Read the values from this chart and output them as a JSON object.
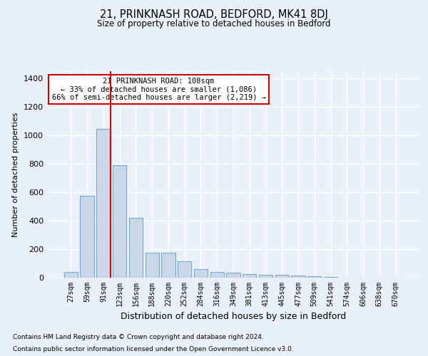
{
  "title": "21, PRINKNASH ROAD, BEDFORD, MK41 8DJ",
  "subtitle": "Size of property relative to detached houses in Bedford",
  "xlabel": "Distribution of detached houses by size in Bedford",
  "ylabel": "Number of detached properties",
  "footnote1": "Contains HM Land Registry data © Crown copyright and database right 2024.",
  "footnote2": "Contains public sector information licensed under the Open Government Licence v3.0.",
  "annotation_title": "21 PRINKNASH ROAD: 108sqm",
  "annotation_line1": "← 33% of detached houses are smaller (1,086)",
  "annotation_line2": "66% of semi-detached houses are larger (2,219) →",
  "bar_color": "#c8d8e8",
  "bar_edge_color": "#7aa8cc",
  "vline_color": "#cc0000",
  "categories": [
    "27sqm",
    "59sqm",
    "91sqm",
    "123sqm",
    "156sqm",
    "188sqm",
    "220sqm",
    "252sqm",
    "284sqm",
    "316sqm",
    "349sqm",
    "381sqm",
    "413sqm",
    "445sqm",
    "477sqm",
    "509sqm",
    "541sqm",
    "574sqm",
    "606sqm",
    "638sqm",
    "670sqm"
  ],
  "values": [
    40,
    575,
    1045,
    790,
    420,
    175,
    175,
    115,
    58,
    42,
    35,
    25,
    20,
    20,
    13,
    8,
    3,
    2,
    1,
    1,
    0
  ],
  "ylim": [
    0,
    1450
  ],
  "yticks": [
    0,
    200,
    400,
    600,
    800,
    1000,
    1200,
    1400
  ],
  "bg_color": "#eaf0f8",
  "plot_bg_color": "#eaf0f8",
  "grid_color": "#ffffff",
  "annotation_box_color": "#ffffff",
  "annotation_box_edge": "#cc0000",
  "vline_position": 2.43
}
